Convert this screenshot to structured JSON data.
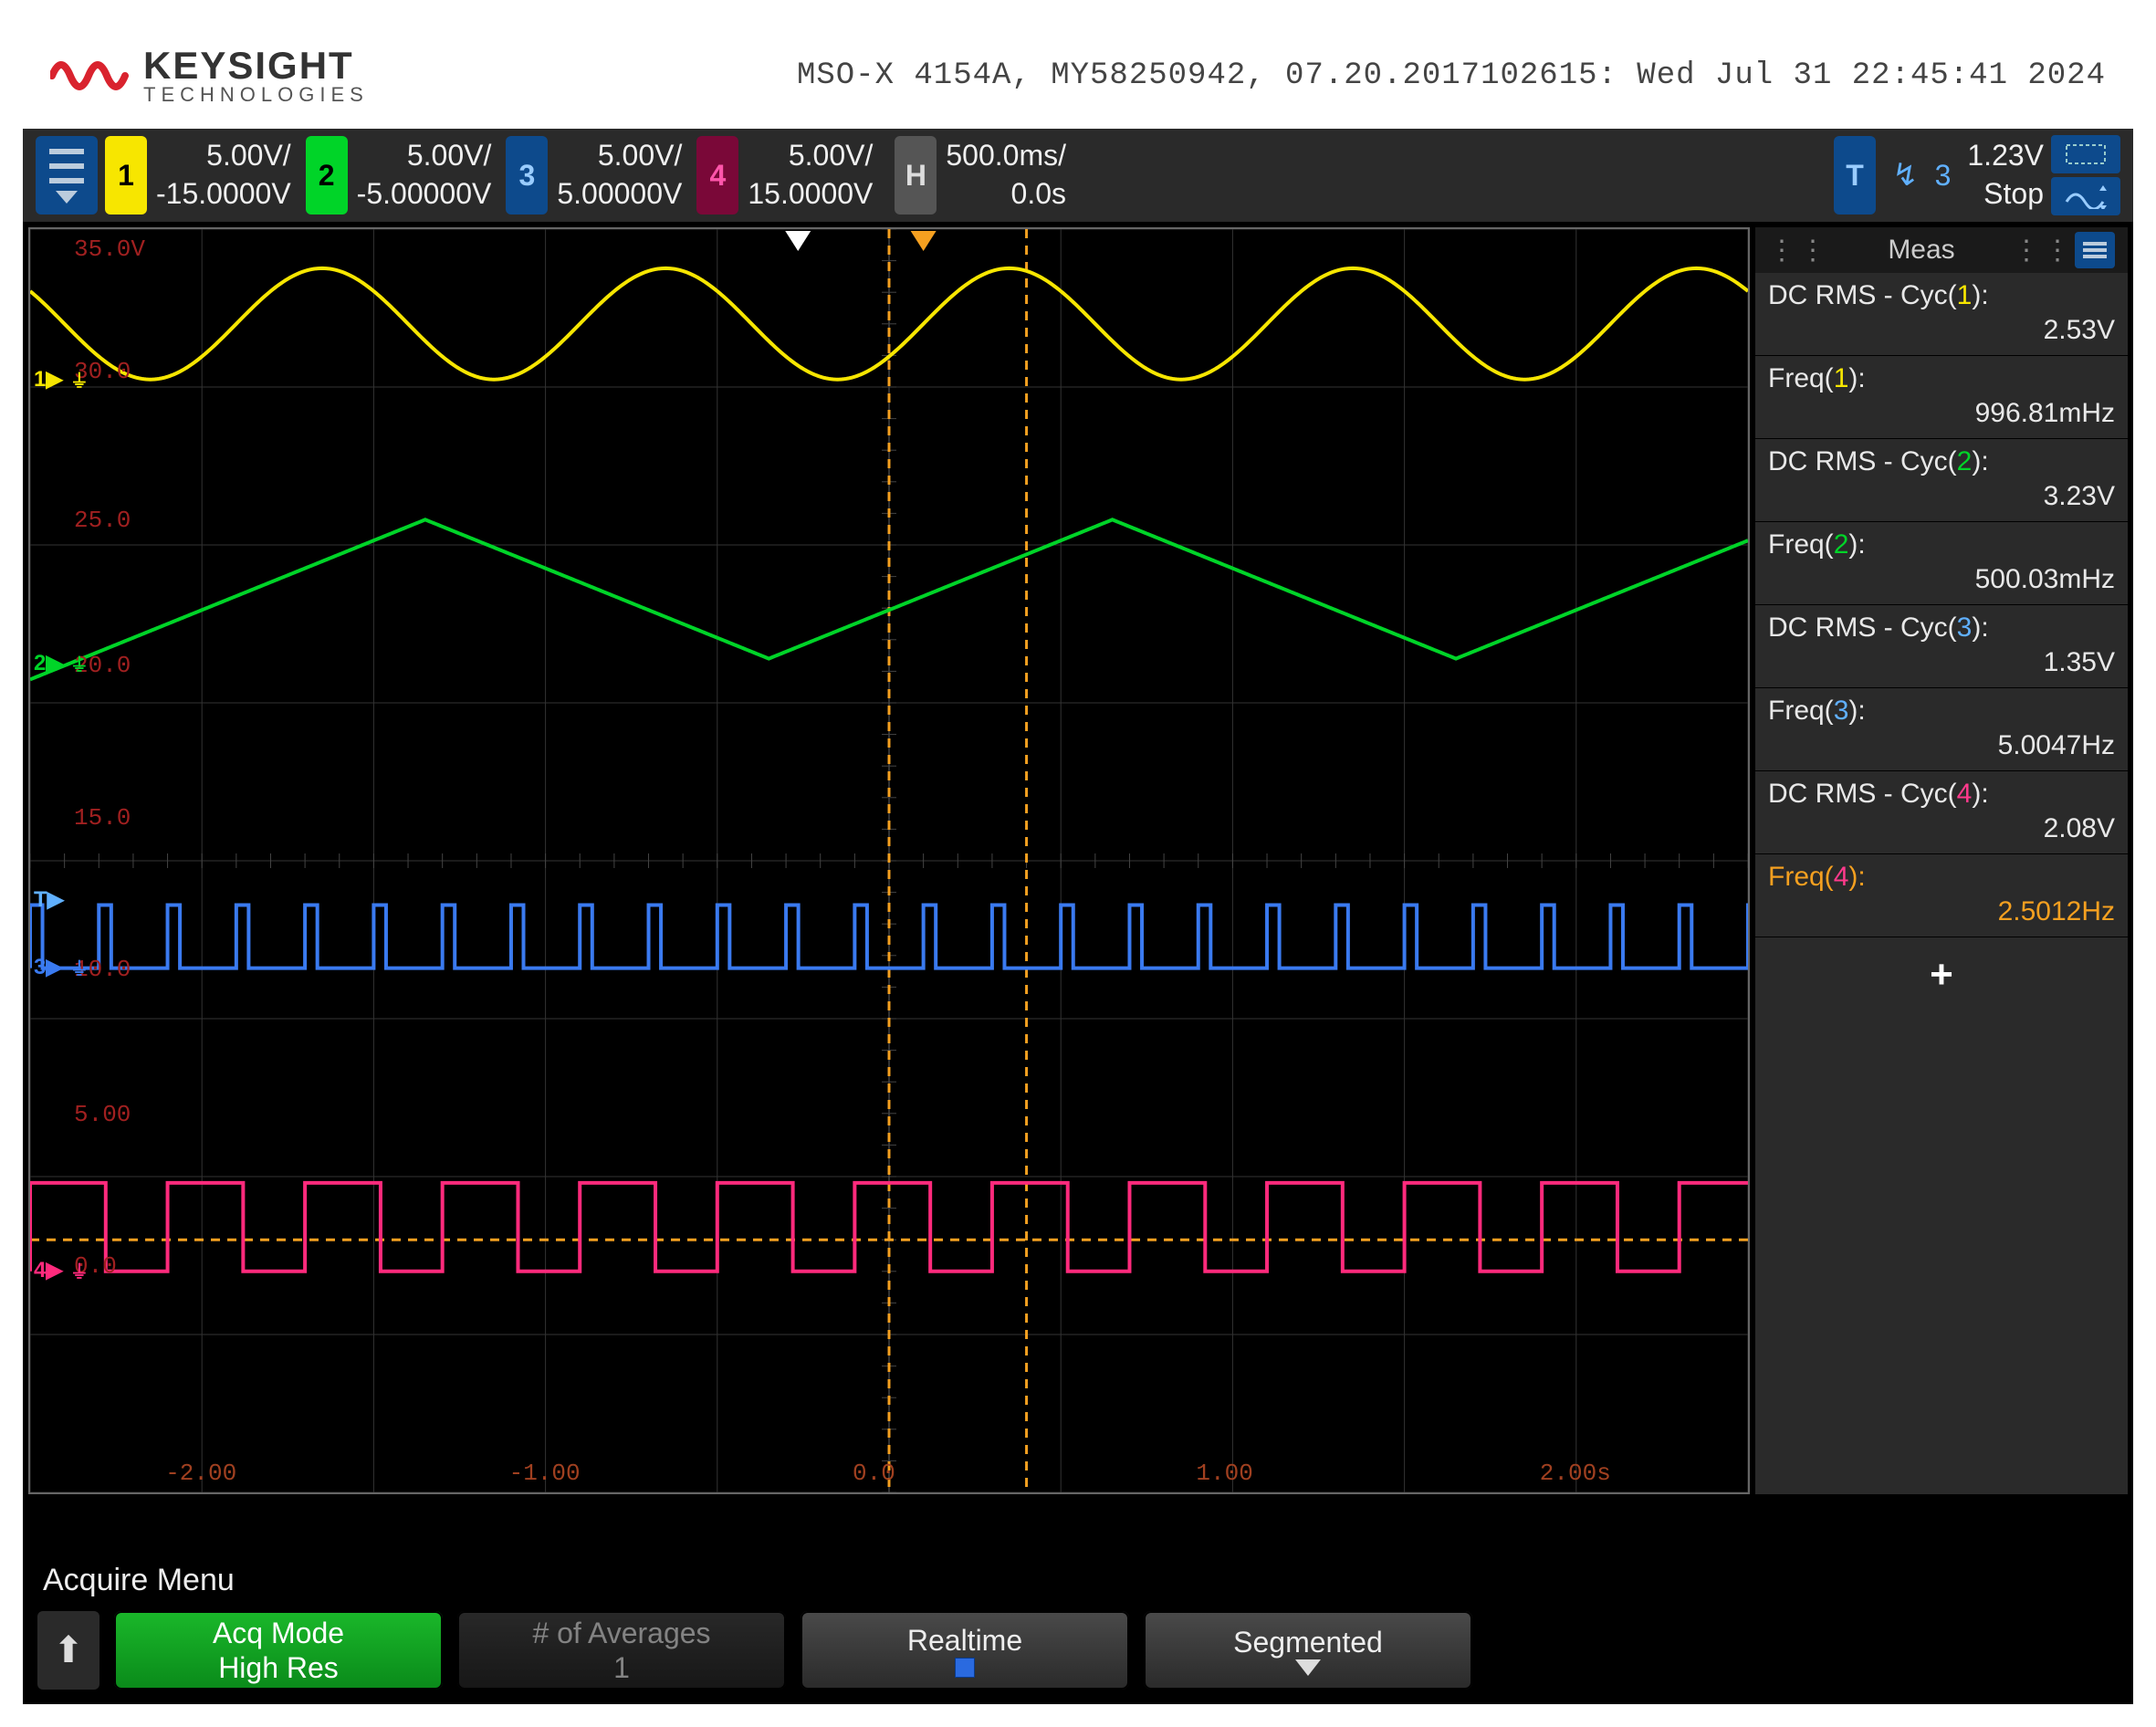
{
  "header": {
    "brand": "KEYSIGHT",
    "sub": "TECHNOLOGIES",
    "info": "MSO-X 4154A, MY58250942, 07.20.2017102615: Wed Jul 31 22:45:41 2024"
  },
  "channels": [
    {
      "id": "1",
      "scale": "5.00V/",
      "offset": "-15.0000V",
      "color": "#f7e600",
      "badge_bg": "#f7e600"
    },
    {
      "id": "2",
      "scale": "5.00V/",
      "offset": "-5.00000V",
      "color": "#00d428",
      "badge_bg": "#00d428"
    },
    {
      "id": "3",
      "scale": "5.00V/",
      "offset": "5.00000V",
      "color": "#3a7af0",
      "badge_bg": "#0d4a8c"
    },
    {
      "id": "4",
      "scale": "5.00V/",
      "offset": "15.0000V",
      "color": "#ff2a7c",
      "badge_bg": "#7a0838"
    }
  ],
  "timebase": {
    "scale": "500.0ms/",
    "delay": "0.0s"
  },
  "trigger": {
    "source": "3",
    "level": "1.23V",
    "mode": "Stop",
    "edge": "rising"
  },
  "y_axis": {
    "ticks": [
      {
        "v": "35.0V",
        "y": 0.015
      },
      {
        "v": "30.0",
        "y": 0.112
      },
      {
        "v": "25.0",
        "y": 0.23
      },
      {
        "v": "20.0",
        "y": 0.345
      },
      {
        "v": "15.0",
        "y": 0.465
      },
      {
        "v": "10.0",
        "y": 0.585
      },
      {
        "v": "5.00",
        "y": 0.7
      },
      {
        "v": "0.0",
        "y": 0.82
      }
    ]
  },
  "x_axis": {
    "ticks": [
      {
        "v": "-2.00",
        "x": 0.1
      },
      {
        "v": "-1.00",
        "x": 0.3
      },
      {
        "v": "0.0",
        "x": 0.5
      },
      {
        "v": "1.00",
        "x": 0.7
      },
      {
        "v": "2.00s",
        "x": 0.9
      }
    ]
  },
  "ground_markers": [
    {
      "ch": "1",
      "y": 0.12,
      "color": "#f7e600"
    },
    {
      "ch": "2",
      "y": 0.345,
      "color": "#00d428"
    },
    {
      "ch": "3",
      "y": 0.585,
      "color": "#3a7af0"
    },
    {
      "ch": "4",
      "y": 0.825,
      "color": "#ff2a7c"
    }
  ],
  "cursors": {
    "v1_x": 0.5,
    "v2_x": 0.58,
    "h_y": 0.8,
    "color": "#f5a020"
  },
  "trigger_marker": {
    "x": 0.447,
    "color": "#ffffff"
  },
  "delay_marker": {
    "x": 0.52,
    "color": "#f5a020"
  },
  "waves": {
    "ch1": {
      "type": "sine",
      "color": "#f7e600",
      "y_center": 0.075,
      "amp": 0.044,
      "cycles": 5,
      "phase": -0.12,
      "stroke": 4
    },
    "ch2": {
      "type": "triangle",
      "color": "#00d428",
      "y_center": 0.285,
      "amp": 0.055,
      "cycles": 2.5,
      "phase": -0.03,
      "stroke": 4
    },
    "ch3": {
      "type": "square",
      "color": "#3a7af0",
      "y_top": 0.535,
      "y_bot": 0.585,
      "cycles": 25,
      "duty": 0.18,
      "stroke": 4
    },
    "ch4": {
      "type": "square",
      "color": "#ff2a7c",
      "y_top": 0.755,
      "y_bot": 0.825,
      "cycles": 12.5,
      "duty": 0.55,
      "stroke": 4
    }
  },
  "measurements": {
    "title": "Meas",
    "items": [
      {
        "label": "DC RMS - Cyc(",
        "n": "1",
        "close": "):",
        "value": "2.53V",
        "nc": "n1"
      },
      {
        "label": "Freq(",
        "n": "1",
        "close": "):",
        "value": "996.81mHz",
        "nc": "n1"
      },
      {
        "label": "DC RMS - Cyc(",
        "n": "2",
        "close": "):",
        "value": "3.23V",
        "nc": "n2"
      },
      {
        "label": "Freq(",
        "n": "2",
        "close": "):",
        "value": "500.03mHz",
        "nc": "n2"
      },
      {
        "label": "DC RMS - Cyc(",
        "n": "3",
        "close": "):",
        "value": "1.35V",
        "nc": "n3"
      },
      {
        "label": "Freq(",
        "n": "3",
        "close": "):",
        "value": "5.0047Hz",
        "nc": "n3"
      },
      {
        "label": "DC RMS - Cyc(",
        "n": "4",
        "close": "):",
        "value": "2.08V",
        "nc": "n4"
      },
      {
        "label": "Freq(",
        "n": "4",
        "close": "):",
        "value": "2.5012Hz",
        "nc": "n4",
        "hl": true
      }
    ]
  },
  "footer": {
    "menu": "Acquire Menu",
    "buttons": [
      {
        "top": "Acq Mode",
        "bot": "High Res",
        "style": "green"
      },
      {
        "top": "# of Averages",
        "bot": "1",
        "style": "grey",
        "dim": true
      },
      {
        "top": "Realtime",
        "bot": "",
        "style": "grey",
        "indicator": "square"
      },
      {
        "top": "Segmented",
        "bot": "",
        "style": "grey",
        "indicator": "down"
      }
    ]
  }
}
